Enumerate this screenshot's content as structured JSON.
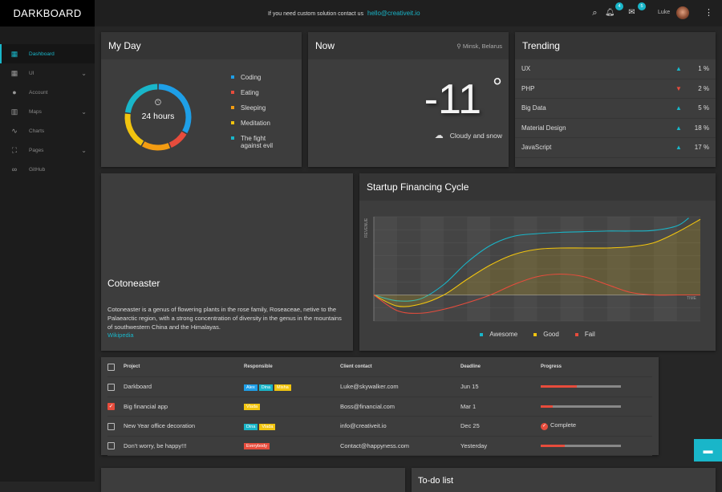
{
  "app": {
    "title": "DARKBOARD"
  },
  "topbar": {
    "contact_text": "If you need custom solution contact us",
    "contact_email": "hello@creativeit.io",
    "notifications_count": "4",
    "messages_count": "5",
    "user_name": "Luke"
  },
  "sidebar": {
    "items": [
      {
        "label": "Dashboard",
        "icon": "dashboard-icon",
        "active": true
      },
      {
        "label": "UI",
        "icon": "grid-icon",
        "expandable": true
      },
      {
        "label": "Account",
        "icon": "person-icon"
      },
      {
        "label": "Maps",
        "icon": "map-icon",
        "expandable": true
      },
      {
        "label": "Charts",
        "icon": "chart-icon"
      },
      {
        "label": "Pages",
        "icon": "pages-icon",
        "expandable": true
      },
      {
        "label": "GitHub",
        "icon": "link-icon"
      }
    ]
  },
  "myday": {
    "title": "My Day",
    "center": "24 hours",
    "items": [
      {
        "label": "Coding",
        "color": "#1e9fe8",
        "hours": 8
      },
      {
        "label": "Eating",
        "color": "#e74c3c",
        "hours": 2.5
      },
      {
        "label": "Sleeping",
        "color": "#f39c12",
        "hours": 3.5
      },
      {
        "label": "Meditation",
        "color": "#f1c40f",
        "hours": 4.5
      },
      {
        "label": "The fight against evil",
        "line1": "The fight",
        "line2": "against evil",
        "color": "#19b6c9",
        "hours": 5.5
      }
    ]
  },
  "now": {
    "title": "Now",
    "location": "Minsk, Belarus",
    "temperature": "-11",
    "degree": "°",
    "condition": "Cloudy and snow"
  },
  "trending": {
    "title": "Trending",
    "items": [
      {
        "name": "UX",
        "dir": "up",
        "value": "1 %"
      },
      {
        "name": "PHP",
        "dir": "down",
        "value": "2 %"
      },
      {
        "name": "Big Data",
        "dir": "up",
        "value": "5 %"
      },
      {
        "name": "Material Design",
        "dir": "up",
        "value": "18 %"
      },
      {
        "name": "JavaScript",
        "dir": "up",
        "value": "17 %"
      }
    ]
  },
  "article": {
    "title": "Cotoneaster",
    "body": "Cotoneaster is a genus of flowering plants in the rose family, Roseaceae, netive to the Palaearctic region, with a strong concentration of diversity in the genus in the mountains of southwestern China and the Himalayas.",
    "link": "Wikipedia"
  },
  "chart_data": {
    "type": "line",
    "title": "Startup Financing Cycle",
    "xlabel": "TIME",
    "ylabel": "REVENUE",
    "xlim": [
      0,
      14
    ],
    "ylim": [
      -2,
      6
    ],
    "grid": true,
    "legend": "bottom",
    "series": [
      {
        "name": "Awesome",
        "color": "#19b6c9",
        "x": [
          0,
          1,
          2,
          3,
          4,
          5,
          6,
          7,
          8,
          9,
          10,
          11,
          12,
          13,
          13.5
        ],
        "y": [
          0,
          -0.45,
          -0.3,
          0.8,
          2.5,
          3.8,
          4.5,
          4.7,
          4.8,
          4.85,
          4.9,
          4.9,
          4.95,
          5.3,
          5.9
        ]
      },
      {
        "name": "Good",
        "color": "#f1c40f",
        "fill": true,
        "x": [
          0,
          1,
          2,
          3,
          4,
          5,
          6,
          7,
          8,
          9,
          10,
          11,
          12,
          13,
          14
        ],
        "y": [
          0,
          -0.85,
          -0.7,
          0,
          1.2,
          2.3,
          3.1,
          3.5,
          3.6,
          3.6,
          3.6,
          3.7,
          4,
          4.8,
          5.8
        ]
      },
      {
        "name": "Fail",
        "color": "#e74c3c",
        "x": [
          0,
          1,
          2,
          3,
          4,
          5,
          6,
          7,
          8,
          9,
          10,
          11,
          12,
          13,
          14
        ],
        "y": [
          0,
          -1.2,
          -1.4,
          -1.1,
          -0.6,
          0,
          0.8,
          1.4,
          1.6,
          1.4,
          0.8,
          0.2,
          0,
          0,
          0
        ]
      }
    ]
  },
  "projects": {
    "headers": [
      "Project",
      "Responsible",
      "Client contact",
      "Deadline",
      "Progress"
    ],
    "rows": [
      {
        "checked": false,
        "project": "Darkboard",
        "tags": [
          {
            "t": "Alex",
            "c": "#1e9fe8"
          },
          {
            "t": "Dina",
            "c": "#19b6c9"
          },
          {
            "t": "Misha",
            "c": "#f1c40f"
          }
        ],
        "contact": "Luke@skywalker.com",
        "deadline": "Jun 15",
        "progress": 45
      },
      {
        "checked": true,
        "project": "Big financial app",
        "tags": [
          {
            "t": "Vlada",
            "c": "#f1c40f"
          }
        ],
        "contact": "Boss@financial.com",
        "deadline": "Mar 1",
        "progress": 15
      },
      {
        "checked": false,
        "project": "New Year office decoration",
        "tags": [
          {
            "t": "Dina",
            "c": "#19b6c9"
          },
          {
            "t": "Vlada",
            "c": "#f1c40f"
          }
        ],
        "contact": "info@creativeit.io",
        "deadline": "Dec 25",
        "progress": 100,
        "status": "Complete"
      },
      {
        "checked": false,
        "project": "Don't worry, be happy!!!",
        "tags": [
          {
            "t": "Everybody",
            "c": "#e74c3c"
          }
        ],
        "contact": "Contact@happyness.com",
        "deadline": "Yesterday",
        "progress": 30
      }
    ]
  },
  "todo": {
    "title": "To-do list"
  },
  "colors": {
    "accent": "#19b6c9",
    "danger": "#e74c3c"
  }
}
